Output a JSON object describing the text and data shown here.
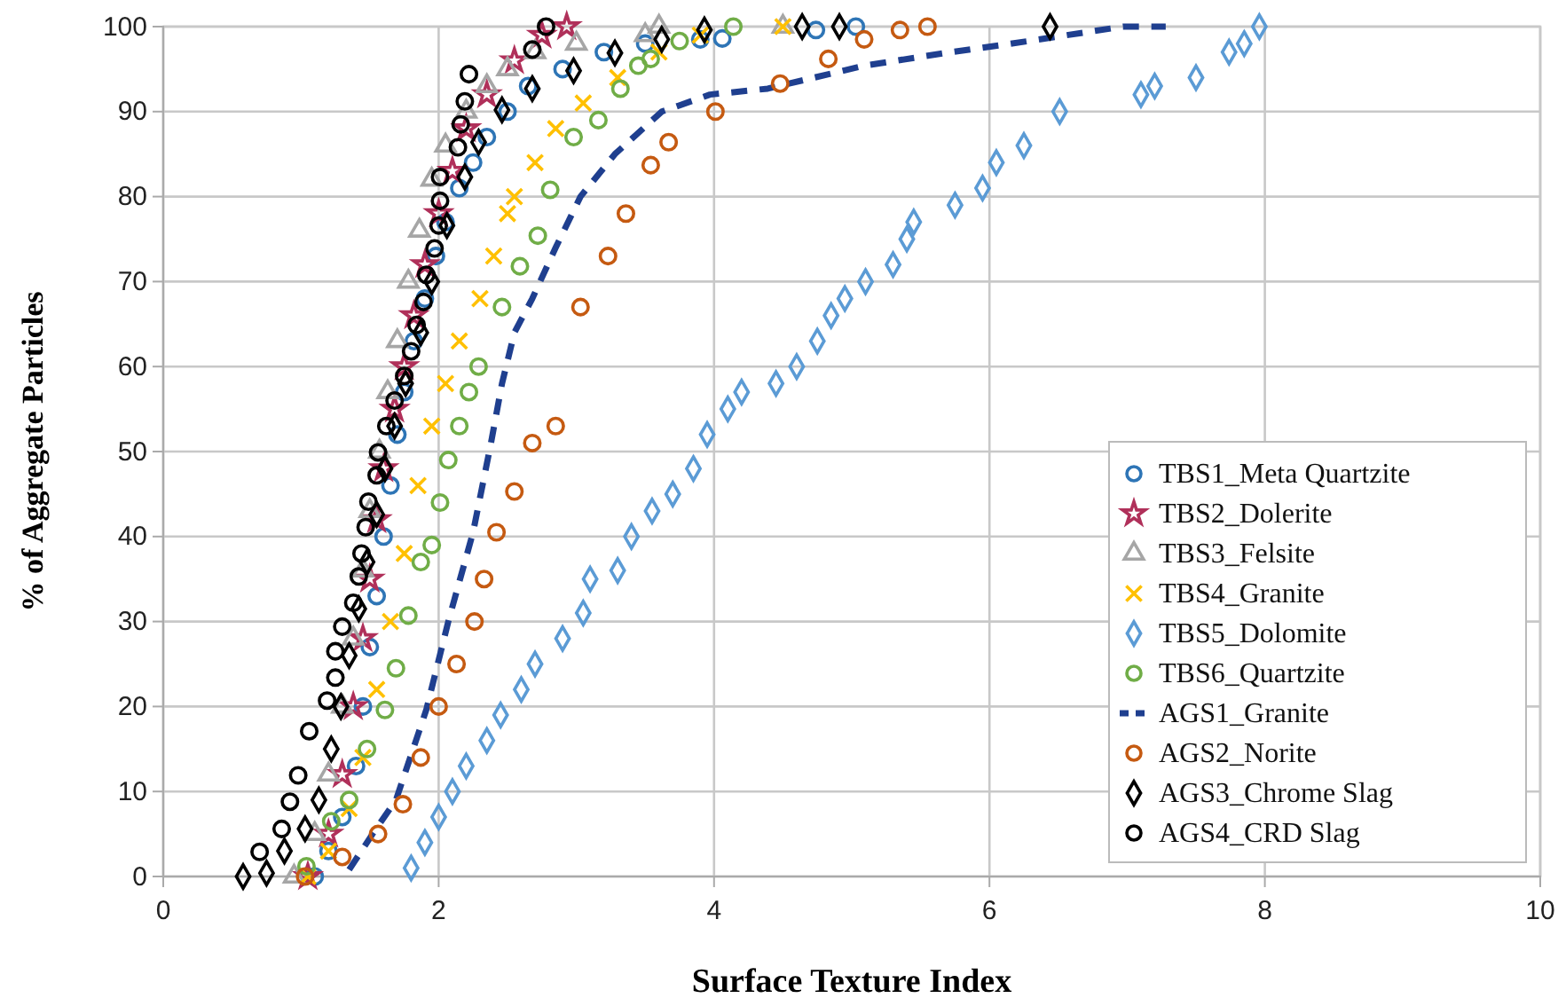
{
  "chart_data": {
    "type": "scatter",
    "xlabel": "Surface Texture Index",
    "ylabel": "% of Aggregate Particles",
    "xlim": [
      0,
      10
    ],
    "ylim": [
      0,
      100
    ],
    "xticks": [
      0,
      2,
      4,
      6,
      8,
      10
    ],
    "yticks": [
      0,
      10,
      20,
      30,
      40,
      50,
      60,
      70,
      80,
      90,
      100
    ],
    "grid": true,
    "legend": "bottom right",
    "series": [
      {
        "name": "TBS1_Meta Quartzite",
        "color": "#2e75b6",
        "marker": "circle",
        "x": [
          1.1,
          1.2,
          1.3,
          1.4,
          1.45,
          1.5,
          1.55,
          1.6,
          1.65,
          1.7,
          1.75,
          1.82,
          1.9,
          1.98,
          2.05,
          2.15,
          2.25,
          2.35,
          2.5,
          2.65,
          2.9,
          3.2,
          3.5,
          3.9,
          4.06,
          4.74,
          5.03
        ],
        "values": [
          0,
          3,
          7,
          13,
          20,
          27,
          33,
          40,
          46,
          52,
          57,
          63,
          68,
          73,
          77,
          81,
          84,
          87,
          90,
          93,
          95,
          97,
          98,
          98.5,
          98.6,
          99.6,
          100
        ]
      },
      {
        "name": "TBS2_Dolerite",
        "color": "#b0305a",
        "marker": "star",
        "x": [
          1.05,
          1.2,
          1.3,
          1.38,
          1.45,
          1.5,
          1.55,
          1.6,
          1.68,
          1.75,
          1.82,
          1.9,
          2.0,
          2.1,
          2.2,
          2.35,
          2.55,
          2.75,
          2.93
        ],
        "values": [
          0,
          5,
          12,
          20,
          28,
          35,
          42,
          48,
          55,
          60,
          66,
          72,
          78,
          83,
          88,
          92,
          96,
          99,
          100
        ]
      },
      {
        "name": "TBS3_Felsite",
        "color": "#a6a6a6",
        "marker": "triangle",
        "x": [
          0.95,
          1.1,
          1.2,
          1.3,
          1.38,
          1.45,
          1.5,
          1.57,
          1.63,
          1.7,
          1.78,
          1.86,
          1.95,
          2.05,
          2.2,
          2.35,
          2.5,
          2.7,
          3.0,
          3.5,
          3.6,
          4.5
        ],
        "values": [
          0,
          5,
          12,
          20,
          28,
          36,
          43,
          50,
          57,
          63,
          70,
          76,
          82,
          86,
          90,
          93,
          95,
          97,
          98,
          99,
          100,
          100
        ]
      },
      {
        "name": "TBS4_Granite",
        "color": "#ffc000",
        "marker": "cross",
        "x": [
          1.05,
          1.2,
          1.35,
          1.45,
          1.55,
          1.65,
          1.75,
          1.85,
          1.95,
          2.05,
          2.15,
          2.3,
          2.4,
          2.5,
          2.55,
          2.7,
          2.85,
          3.05,
          3.3,
          3.6,
          3.9,
          4.5
        ],
        "values": [
          0,
          3,
          8,
          14,
          22,
          30,
          38,
          46,
          53,
          58,
          63,
          68,
          73,
          78,
          80,
          84,
          88,
          91,
          94,
          97,
          99,
          100
        ]
      },
      {
        "name": "TBS5_Dolomite",
        "color": "#5b9bd5",
        "marker": "diamond",
        "x": [
          1.8,
          1.9,
          2.0,
          2.1,
          2.2,
          2.35,
          2.45,
          2.6,
          2.7,
          2.9,
          3.05,
          3.1,
          3.3,
          3.4,
          3.55,
          3.7,
          3.85,
          3.95,
          4.1,
          4.2,
          4.45,
          4.6,
          4.75,
          4.85,
          4.95,
          5.1,
          5.3,
          5.4,
          5.45,
          5.75,
          5.95,
          6.05,
          6.25,
          6.51,
          7.1,
          7.2,
          7.5,
          7.74,
          7.85,
          7.96
        ],
        "values": [
          1,
          4,
          7,
          10,
          13,
          16,
          19,
          22,
          25,
          28,
          31,
          35,
          36,
          40,
          43,
          45,
          48,
          52,
          55,
          57,
          58,
          60,
          63,
          66,
          68,
          70,
          72,
          75,
          77,
          79,
          81,
          84,
          86,
          90,
          92,
          93,
          94,
          97,
          98,
          100
        ]
      },
      {
        "name": "TBS6_Quartzite",
        "color": "#70ad47",
        "marker": "circle",
        "x": [
          1.04,
          1.22,
          1.35,
          1.48,
          1.61,
          1.69,
          1.78,
          1.87,
          1.95,
          2.01,
          2.07,
          2.15,
          2.22,
          2.29,
          2.46,
          2.59,
          2.72,
          2.81,
          2.98,
          3.16,
          3.32,
          3.45,
          3.54,
          3.75,
          4.14
        ],
        "values": [
          1.2,
          6.5,
          9,
          15,
          19.6,
          24.5,
          30.7,
          37,
          39,
          44,
          49,
          53,
          57,
          60,
          67,
          71.8,
          75.4,
          80.8,
          87,
          89,
          92.7,
          95.4,
          96.2,
          98.3,
          100
        ]
      },
      {
        "name": "AGS1_Granite",
        "color": "#1f3f8f",
        "type": "line",
        "line_style": "dashed",
        "marker": "none",
        "x": [
          1.35,
          1.52,
          1.69,
          1.91,
          2.07,
          2.25,
          2.38,
          2.46,
          2.55,
          2.68,
          2.85,
          3.03,
          3.28,
          3.62,
          3.97,
          4.39,
          5.09,
          5.68,
          6.12,
          6.97,
          7.28
        ],
        "values": [
          0.8,
          5,
          9,
          19.6,
          30,
          40.5,
          51,
          58,
          64,
          68,
          74,
          80,
          85,
          90,
          92,
          92.7,
          95.4,
          96.9,
          97.9,
          100,
          100
        ]
      },
      {
        "name": "AGS2_Norite",
        "color": "#c55a11",
        "marker": "circle",
        "x": [
          1.03,
          1.3,
          1.56,
          1.74,
          1.87,
          2.0,
          2.13,
          2.26,
          2.33,
          2.42,
          2.55,
          2.68,
          2.85,
          3.03,
          3.23,
          3.36,
          3.54,
          3.67,
          4.01,
          4.48,
          4.83,
          5.09,
          5.35,
          5.55
        ],
        "values": [
          0,
          2.3,
          5,
          8.5,
          14,
          20,
          25,
          30,
          35,
          40.5,
          45.3,
          51,
          53,
          67,
          73,
          78,
          83.7,
          86.4,
          90,
          93.3,
          96.2,
          98.5,
          99.6,
          100
        ]
      },
      {
        "name": "AGS3_Chrome Slag",
        "color": "#000000",
        "marker": "diamond",
        "x": [
          0.58,
          0.75,
          0.88,
          1.03,
          1.13,
          1.22,
          1.29,
          1.35,
          1.42,
          1.48,
          1.55,
          1.61,
          1.68,
          1.76,
          1.87,
          1.95,
          2.06,
          2.19,
          2.29,
          2.46,
          2.68,
          2.98,
          3.28,
          3.62,
          3.93,
          4.64,
          4.91,
          6.44
        ],
        "values": [
          0,
          0.4,
          3,
          5.6,
          9,
          15,
          20,
          26,
          31.5,
          37,
          42.6,
          48,
          53,
          58,
          64,
          70,
          76.6,
          82.3,
          86.4,
          90.2,
          92.7,
          94.8,
          96.9,
          98.5,
          99.6,
          100,
          100,
          100
        ]
      },
      {
        "name": "AGS4_CRD Slag",
        "color": "#000000",
        "marker": "circle",
        "x": [
          0.7,
          0.86,
          0.92,
          0.98,
          1.06,
          1.19,
          1.25,
          1.25,
          1.3,
          1.38,
          1.42,
          1.44,
          1.47,
          1.49,
          1.55,
          1.56,
          1.62,
          1.68,
          1.75,
          1.8,
          1.84,
          1.89,
          1.91,
          1.97,
          2.0,
          2.01,
          2.01,
          2.14,
          2.16,
          2.19,
          2.22,
          2.68,
          2.78
        ],
        "values": [
          2.9,
          5.6,
          8.8,
          11.9,
          17.1,
          20.7,
          23.4,
          26.5,
          29.4,
          32.2,
          35.3,
          38,
          41.1,
          44.1,
          47.2,
          49.9,
          53,
          56,
          58.9,
          61.8,
          64.9,
          67.6,
          70.8,
          73.9,
          76.6,
          79.5,
          82.3,
          85.8,
          88.5,
          91.2,
          94.4,
          97.3,
          100
        ]
      }
    ]
  }
}
